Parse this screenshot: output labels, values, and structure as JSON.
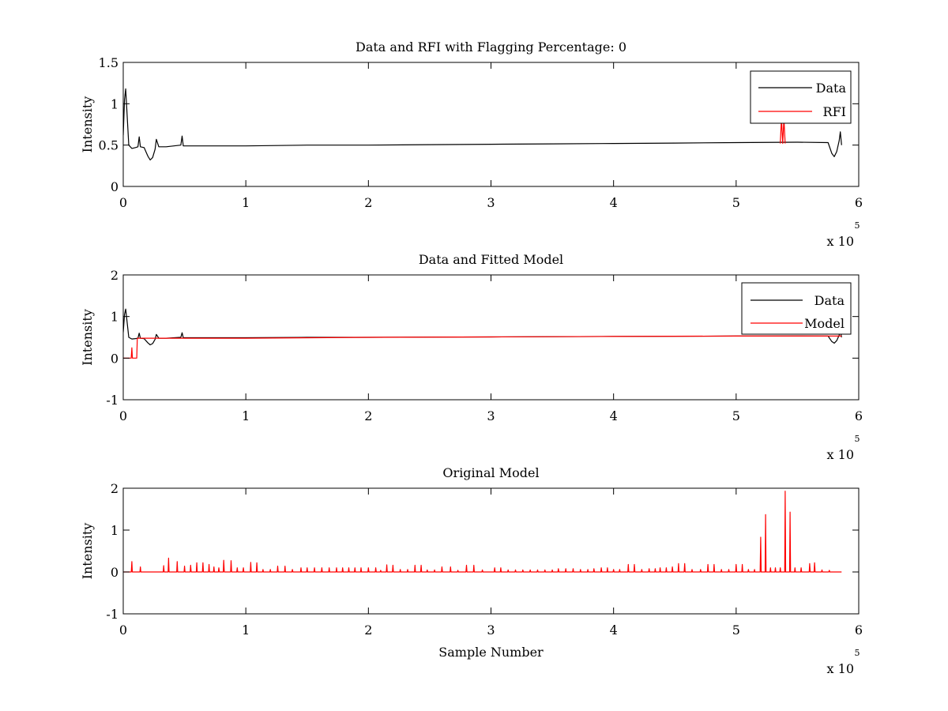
{
  "chart_data": [
    {
      "type": "line",
      "title": "Data and RFI with Flagging Percentage: 0",
      "xlabel": "",
      "ylabel": "Intensity",
      "xlim": [
        0,
        6
      ],
      "ylim": [
        0,
        1.5
      ],
      "x_ticks": [
        "0",
        "1",
        "2",
        "3",
        "4",
        "5",
        "6"
      ],
      "y_ticks": [
        "0",
        "0.5",
        "1",
        "1.5"
      ],
      "x_multiplier": "x 10",
      "x_multiplier_exp": "5",
      "legend_position": "top-right",
      "grid": false,
      "series": [
        {
          "name": "Data",
          "color": "#000000",
          "points": [
            [
              0,
              0.62
            ],
            [
              0.01,
              1.05
            ],
            [
              0.02,
              1.18
            ],
            [
              0.03,
              0.9
            ],
            [
              0.045,
              0.5
            ],
            [
              0.07,
              0.46
            ],
            [
              0.1,
              0.47
            ],
            [
              0.12,
              0.48
            ],
            [
              0.13,
              0.6
            ],
            [
              0.14,
              0.48
            ],
            [
              0.17,
              0.47
            ],
            [
              0.2,
              0.37
            ],
            [
              0.22,
              0.32
            ],
            [
              0.24,
              0.35
            ],
            [
              0.26,
              0.45
            ],
            [
              0.27,
              0.57
            ],
            [
              0.29,
              0.48
            ],
            [
              0.35,
              0.48
            ],
            [
              0.47,
              0.5
            ],
            [
              0.48,
              0.61
            ],
            [
              0.49,
              0.49
            ],
            [
              0.7,
              0.49
            ],
            [
              1.0,
              0.49
            ],
            [
              1.5,
              0.5
            ],
            [
              2.0,
              0.5
            ],
            [
              2.5,
              0.505
            ],
            [
              3.0,
              0.51
            ],
            [
              3.5,
              0.515
            ],
            [
              4.0,
              0.52
            ],
            [
              4.5,
              0.525
            ],
            [
              5.0,
              0.53
            ],
            [
              5.5,
              0.535
            ],
            [
              5.75,
              0.53
            ],
            [
              5.78,
              0.4
            ],
            [
              5.8,
              0.36
            ],
            [
              5.82,
              0.42
            ],
            [
              5.84,
              0.55
            ],
            [
              5.85,
              0.66
            ],
            [
              5.86,
              0.5
            ]
          ]
        },
        {
          "name": "RFI",
          "color": "#ff0000",
          "points": [
            [
              5.36,
              0.52
            ],
            [
              5.37,
              0.82
            ],
            [
              5.38,
              0.52
            ],
            [
              5.39,
              0.82
            ],
            [
              5.4,
              0.52
            ]
          ]
        }
      ]
    },
    {
      "type": "line",
      "title": "Data and Fitted Model",
      "xlabel": "",
      "ylabel": "Intensity",
      "xlim": [
        0,
        6
      ],
      "ylim": [
        -1,
        2
      ],
      "x_ticks": [
        "0",
        "1",
        "2",
        "3",
        "4",
        "5",
        "6"
      ],
      "y_ticks": [
        "-1",
        "0",
        "1",
        "2"
      ],
      "x_multiplier": "x 10",
      "x_multiplier_exp": "5",
      "legend_position": "top-right",
      "grid": false,
      "series": [
        {
          "name": "Data",
          "color": "#000000",
          "points": [
            [
              0,
              0.62
            ],
            [
              0.01,
              1.05
            ],
            [
              0.02,
              1.18
            ],
            [
              0.03,
              0.9
            ],
            [
              0.045,
              0.5
            ],
            [
              0.07,
              0.46
            ],
            [
              0.1,
              0.47
            ],
            [
              0.12,
              0.48
            ],
            [
              0.13,
              0.6
            ],
            [
              0.14,
              0.48
            ],
            [
              0.17,
              0.47
            ],
            [
              0.2,
              0.37
            ],
            [
              0.22,
              0.32
            ],
            [
              0.24,
              0.35
            ],
            [
              0.26,
              0.45
            ],
            [
              0.27,
              0.57
            ],
            [
              0.29,
              0.48
            ],
            [
              0.35,
              0.48
            ],
            [
              0.47,
              0.5
            ],
            [
              0.48,
              0.61
            ],
            [
              0.49,
              0.49
            ],
            [
              0.7,
              0.49
            ],
            [
              1.0,
              0.49
            ],
            [
              1.5,
              0.5
            ],
            [
              2.0,
              0.5
            ],
            [
              2.5,
              0.505
            ],
            [
              3.0,
              0.51
            ],
            [
              3.5,
              0.515
            ],
            [
              4.0,
              0.52
            ],
            [
              4.5,
              0.525
            ],
            [
              5.0,
              0.53
            ],
            [
              5.5,
              0.535
            ],
            [
              5.75,
              0.53
            ],
            [
              5.78,
              0.4
            ],
            [
              5.8,
              0.36
            ],
            [
              5.82,
              0.42
            ],
            [
              5.84,
              0.55
            ],
            [
              5.85,
              0.66
            ],
            [
              5.86,
              0.5
            ]
          ]
        },
        {
          "name": "Model",
          "color": "#ff0000",
          "points": [
            [
              0,
              0
            ],
            [
              0.065,
              0
            ],
            [
              0.07,
              0.25
            ],
            [
              0.075,
              0
            ],
            [
              0.11,
              0
            ],
            [
              0.115,
              0.48
            ],
            [
              0.5,
              0.48
            ],
            [
              1.0,
              0.48
            ],
            [
              2.0,
              0.5
            ],
            [
              3.0,
              0.51
            ],
            [
              4.0,
              0.52
            ],
            [
              5.0,
              0.53
            ],
            [
              5.86,
              0.53
            ]
          ]
        }
      ]
    },
    {
      "type": "line",
      "title": "Original Model",
      "xlabel": "Sample Number",
      "ylabel": "Intensity",
      "xlim": [
        0,
        6
      ],
      "ylim": [
        -1,
        2
      ],
      "x_ticks": [
        "0",
        "1",
        "2",
        "3",
        "4",
        "5",
        "6"
      ],
      "y_ticks": [
        "-1",
        "0",
        "1",
        "2"
      ],
      "x_multiplier": "x 10",
      "x_multiplier_exp": "5",
      "legend_position": "none",
      "grid": false,
      "baseline": 0,
      "x_end": 5.86,
      "series": [
        {
          "color": "#ff0000",
          "spikes": [
            [
              0.07,
              0.25
            ],
            [
              0.14,
              0.12
            ],
            [
              0.33,
              0.15
            ],
            [
              0.37,
              0.33
            ],
            [
              0.44,
              0.25
            ],
            [
              0.5,
              0.14
            ],
            [
              0.55,
              0.16
            ],
            [
              0.6,
              0.22
            ],
            [
              0.65,
              0.22
            ],
            [
              0.7,
              0.18
            ],
            [
              0.74,
              0.12
            ],
            [
              0.78,
              0.1
            ],
            [
              0.82,
              0.28
            ],
            [
              0.88,
              0.27
            ],
            [
              0.93,
              0.1
            ],
            [
              0.98,
              0.1
            ],
            [
              1.04,
              0.23
            ],
            [
              1.09,
              0.22
            ],
            [
              1.14,
              0.06
            ],
            [
              1.2,
              0.06
            ],
            [
              1.26,
              0.14
            ],
            [
              1.32,
              0.14
            ],
            [
              1.38,
              0.06
            ],
            [
              1.45,
              0.1
            ],
            [
              1.5,
              0.1
            ],
            [
              1.56,
              0.1
            ],
            [
              1.62,
              0.1
            ],
            [
              1.68,
              0.1
            ],
            [
              1.74,
              0.1
            ],
            [
              1.79,
              0.1
            ],
            [
              1.84,
              0.1
            ],
            [
              1.89,
              0.1
            ],
            [
              1.94,
              0.1
            ],
            [
              2.0,
              0.1
            ],
            [
              2.06,
              0.1
            ],
            [
              2.1,
              0.04
            ],
            [
              2.15,
              0.17
            ],
            [
              2.2,
              0.16
            ],
            [
              2.26,
              0.06
            ],
            [
              2.32,
              0.06
            ],
            [
              2.38,
              0.16
            ],
            [
              2.43,
              0.16
            ],
            [
              2.48,
              0.05
            ],
            [
              2.54,
              0.05
            ],
            [
              2.6,
              0.12
            ],
            [
              2.67,
              0.12
            ],
            [
              2.73,
              0.04
            ],
            [
              2.8,
              0.16
            ],
            [
              2.86,
              0.16
            ],
            [
              2.93,
              0.05
            ],
            [
              3.03,
              0.1
            ],
            [
              3.08,
              0.1
            ],
            [
              3.14,
              0.05
            ],
            [
              3.2,
              0.05
            ],
            [
              3.26,
              0.05
            ],
            [
              3.32,
              0.05
            ],
            [
              3.38,
              0.05
            ],
            [
              3.44,
              0.05
            ],
            [
              3.5,
              0.05
            ],
            [
              3.55,
              0.08
            ],
            [
              3.61,
              0.08
            ],
            [
              3.67,
              0.08
            ],
            [
              3.73,
              0.06
            ],
            [
              3.79,
              0.06
            ],
            [
              3.84,
              0.08
            ],
            [
              3.9,
              0.1
            ],
            [
              3.95,
              0.1
            ],
            [
              4.0,
              0.06
            ],
            [
              4.05,
              0.06
            ],
            [
              4.12,
              0.18
            ],
            [
              4.17,
              0.18
            ],
            [
              4.23,
              0.06
            ],
            [
              4.29,
              0.08
            ],
            [
              4.34,
              0.08
            ],
            [
              4.38,
              0.1
            ],
            [
              4.43,
              0.1
            ],
            [
              4.48,
              0.12
            ],
            [
              4.53,
              0.2
            ],
            [
              4.58,
              0.2
            ],
            [
              4.64,
              0.06
            ],
            [
              4.71,
              0.06
            ],
            [
              4.77,
              0.18
            ],
            [
              4.82,
              0.18
            ],
            [
              4.88,
              0.06
            ],
            [
              4.94,
              0.06
            ],
            [
              5.0,
              0.18
            ],
            [
              5.05,
              0.18
            ],
            [
              5.1,
              0.06
            ],
            [
              5.15,
              0.06
            ],
            [
              5.2,
              0.83
            ],
            [
              5.24,
              1.37
            ],
            [
              5.28,
              0.1
            ],
            [
              5.32,
              0.1
            ],
            [
              5.36,
              0.1
            ],
            [
              5.4,
              1.93
            ],
            [
              5.44,
              1.43
            ],
            [
              5.48,
              0.1
            ],
            [
              5.53,
              0.1
            ],
            [
              5.6,
              0.2
            ],
            [
              5.64,
              0.22
            ],
            [
              5.7,
              0.05
            ],
            [
              5.76,
              0.04
            ]
          ]
        }
      ]
    }
  ]
}
